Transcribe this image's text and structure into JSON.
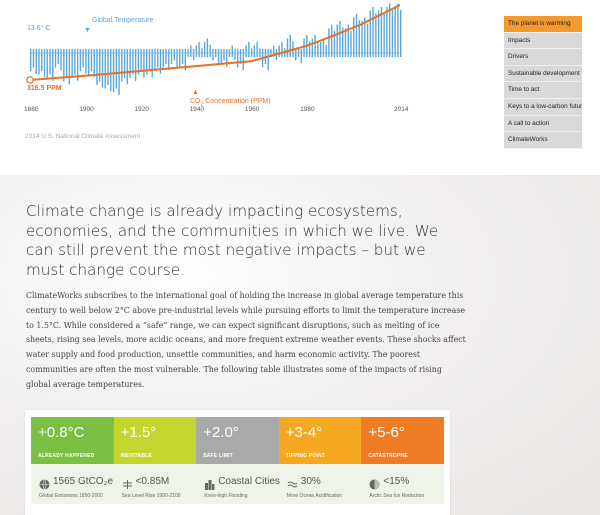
{
  "chart": {
    "start_temp_label": "13.6° C",
    "temp_series_label": "Global Temperature",
    "co2_series_label_prefix": "CO",
    "co2_series_label_sub": "2",
    "co2_series_label_suffix": " Concentration (PPM)",
    "start_ppm_label": "316.5 PPM",
    "years": [
      "1880",
      "1900",
      "1920",
      "1940",
      "1960",
      "1980",
      "2014"
    ],
    "source": "2014 U.S. National Climate Assessment",
    "colors": {
      "temperature": "#5aa7d8",
      "co2": "#e5702a"
    }
  },
  "chart_data": {
    "type": "bar",
    "title": "",
    "x_range": [
      1880,
      2014
    ],
    "series": [
      {
        "name": "Global Temperature",
        "x": [
          1880,
          1883,
          1886,
          1889,
          1892,
          1895,
          1898,
          1901,
          1904,
          1907,
          1910,
          1913,
          1916,
          1919,
          1922,
          1925,
          1928,
          1931,
          1934,
          1937,
          1940,
          1943,
          1946,
          1949,
          1952,
          1955,
          1958,
          1961,
          1964,
          1967,
          1970,
          1973,
          1976,
          1979,
          1982,
          1985,
          1988,
          1991,
          1994,
          1997,
          2000,
          2003,
          2006,
          2009,
          2012
        ],
        "values": [
          -0.2,
          -0.25,
          -0.3,
          -0.15,
          -0.35,
          -0.3,
          -0.2,
          -0.25,
          -0.4,
          -0.45,
          -0.5,
          -0.35,
          -0.3,
          -0.25,
          -0.25,
          -0.2,
          -0.15,
          -0.1,
          -0.15,
          0.0,
          0.05,
          0.1,
          -0.05,
          -0.1,
          0.0,
          -0.15,
          0.05,
          0.05,
          -0.15,
          0.0,
          0.05,
          0.15,
          -0.05,
          0.15,
          0.15,
          0.1,
          0.3,
          0.35,
          0.3,
          0.45,
          0.4,
          0.55,
          0.55,
          0.6,
          0.6
        ]
      },
      {
        "name": "CO2 Concentration (PPM)",
        "type": "line",
        "x": [
          1880,
          1900,
          1920,
          1940,
          1960,
          1980,
          1990,
          2000,
          2014
        ],
        "values": [
          290,
          296,
          303,
          310,
          317,
          339,
          354,
          370,
          398
        ]
      }
    ]
  },
  "nav": {
    "items": [
      "The planet is warming",
      "Impacts",
      "Drivers",
      "Sustainable development",
      "Time to act",
      "Keys to a low-carbon future",
      "A call to action",
      "ClimateWorks"
    ],
    "active_index": 0,
    "active_color": "#f29a2e"
  },
  "headline": "Climate change is already impacting ecosystems, economies, and the communities in which we live. We can still prevent the most negative impacts – but we must change course.",
  "body": "ClimateWorks subscribes to the international goal of holding the increase in global average temperature this century to well below 2°C above pre-industrial levels while pursuing efforts to limit the temperature increase to 1.5°C. While considered a “safe” range, we can expect significant disruptions, such as melting of ice sheets, rising sea levels, more acidic oceans, and more frequent extreme weather events. These shocks affect water supply and food production, unsettle communities, and harm economic activity. The poorest communities are often the most vulnerable. The following table illustrates some of the impacts of rising global average temperatures.",
  "temps": [
    {
      "value": "+0.8°C",
      "tag": "ALREADY HAPPENED",
      "color": "#7bbf44"
    },
    {
      "value": "+1.5°",
      "tag": "INEVITABLE",
      "color": "#c3d62f"
    },
    {
      "value": "+2.0°",
      "tag": "SAFE LIMIT",
      "color": "#a9a9a9"
    },
    {
      "value": "+3-4°",
      "tag": "TIPPING POINT",
      "color": "#f7a822"
    },
    {
      "value": "+5-6°",
      "tag": "CATASTROPHE",
      "color": "#ee7b26"
    }
  ],
  "impacts": [
    {
      "value": "1565 GtCO₂e",
      "desc": "Global Emissions 1850-2000",
      "icon": "globe-icon"
    },
    {
      "value": "<0.85M",
      "desc": "Sea Level Rise 1990-2100",
      "icon": "sea-level-icon"
    },
    {
      "value": "Coastal Cities",
      "desc": "Knee-high Flooding",
      "icon": "city-icon"
    },
    {
      "value": "30%",
      "desc": "More Ocean Acidification",
      "icon": "ocean-icon"
    },
    {
      "value": "<15%",
      "desc": "Arctic Sea Ice Reduction",
      "icon": "ice-icon"
    }
  ]
}
